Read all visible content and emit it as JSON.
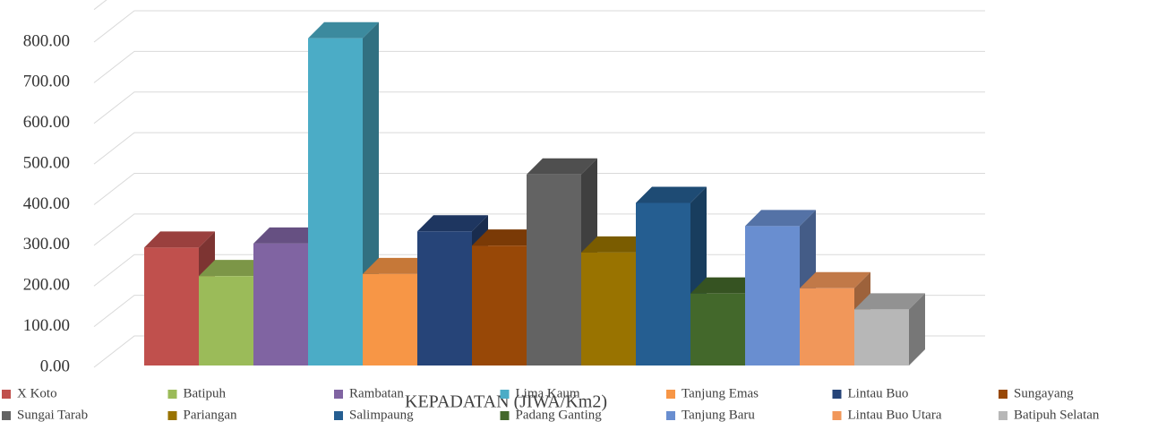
{
  "chart_data": {
    "type": "bar3d",
    "x_label": "KEPADATAN (JIWA/Km2)",
    "categories": [
      "KEPADATAN (JIWA/Km2)"
    ],
    "series": [
      {
        "name": "X Koto",
        "color": "#c0504d",
        "values": [
          290
        ]
      },
      {
        "name": "Batipuh",
        "color": "#9bbb59",
        "values": [
          220
        ]
      },
      {
        "name": "Rambatan",
        "color": "#8064a2",
        "values": [
          300
        ]
      },
      {
        "name": "Lima Kaum",
        "color": "#4bacc6",
        "values": [
          805
        ]
      },
      {
        "name": "Tanjung Emas",
        "color": "#f79646",
        "values": [
          225
        ]
      },
      {
        "name": "Lintau Buo",
        "color": "#264478",
        "values": [
          330
        ]
      },
      {
        "name": "Sungayang",
        "color": "#984807",
        "values": [
          295
        ]
      },
      {
        "name": "Sungai Tarab",
        "color": "#636363",
        "values": [
          470
        ]
      },
      {
        "name": "Pariangan",
        "color": "#997300",
        "values": [
          278
        ]
      },
      {
        "name": "Salimpaung",
        "color": "#255e91",
        "values": [
          400
        ]
      },
      {
        "name": "Padang Ganting",
        "color": "#43682b",
        "values": [
          177
        ]
      },
      {
        "name": "Tanjung Baru",
        "color": "#698ed0",
        "values": [
          343
        ]
      },
      {
        "name": "Lintau Buo Utara",
        "color": "#f1975a",
        "values": [
          190
        ]
      },
      {
        "name": "Batipuh Selatan",
        "color": "#b7b7b7",
        "values": [
          138
        ]
      }
    ],
    "ylim": [
      0,
      880
    ],
    "yticks": [
      {
        "value": 0,
        "label": "0.00"
      },
      {
        "value": 100,
        "label": "100.00"
      },
      {
        "value": 200,
        "label": "200.00"
      },
      {
        "value": 300,
        "label": "300.00"
      },
      {
        "value": 400,
        "label": "400.00"
      },
      {
        "value": 500,
        "label": "500.00"
      },
      {
        "value": 600,
        "label": "600.00"
      },
      {
        "value": 700,
        "label": "700.00"
      },
      {
        "value": 800,
        "label": "800.00"
      }
    ],
    "grid": true
  }
}
